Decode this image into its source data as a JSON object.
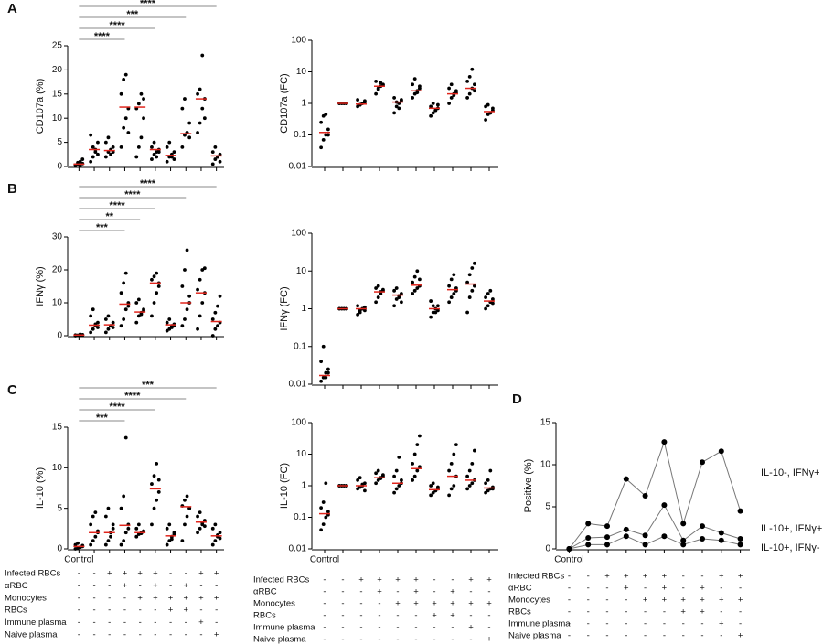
{
  "chart_data": [
    {
      "type": "dot",
      "panel": "A",
      "ylabel": "CD107a (%)",
      "log": false,
      "ylim": [
        0,
        25
      ],
      "yticks": [
        0,
        5,
        10,
        15,
        20,
        25
      ],
      "color": "#000000",
      "median_color": "#e0251c",
      "categories": [
        null,
        null,
        null,
        null,
        null,
        null,
        null,
        null,
        null,
        null
      ],
      "brackets": [
        {
          "from": 0,
          "to": 3,
          "label": "****"
        },
        {
          "from": 0,
          "to": 5,
          "label": "****"
        },
        {
          "from": 0,
          "to": 7,
          "label": "***"
        },
        {
          "from": 0,
          "to": 9,
          "label": "****"
        }
      ],
      "groups": [
        {
          "values": [
            0.2,
            0.5,
            1,
            1.5,
            0.3,
            0.8,
            0.1,
            0.6
          ],
          "median": 0.5
        },
        {
          "values": [
            1,
            2,
            3.5,
            5,
            6.5,
            4,
            3,
            2.5
          ],
          "median": 3.5
        },
        {
          "values": [
            2,
            3,
            3.5,
            4,
            5,
            6,
            2.5,
            3
          ],
          "median": 3.3
        },
        {
          "values": [
            4,
            8,
            10,
            12,
            15,
            18,
            19,
            7
          ],
          "median": 12.3
        },
        {
          "values": [
            2,
            4,
            6,
            10,
            12,
            13,
            15,
            14
          ],
          "median": 12.3
        },
        {
          "values": [
            1.5,
            2.5,
            3,
            3.5,
            4,
            5,
            2,
            3
          ],
          "median": 3.5
        },
        {
          "values": [
            1,
            2,
            2.5,
            3,
            4,
            5,
            2,
            1.5
          ],
          "median": 2.3
        },
        {
          "values": [
            4,
            6.5,
            7,
            9,
            12,
            14,
            7,
            6
          ],
          "median": 6.8
        },
        {
          "values": [
            7,
            9,
            12,
            14,
            15,
            16,
            23,
            10
          ],
          "median": 14
        },
        {
          "values": [
            0.5,
            1.5,
            2,
            2.5,
            3,
            4,
            2,
            1
          ],
          "median": 2.2
        }
      ]
    },
    {
      "type": "dot",
      "ylabel": "CD107a (FC)",
      "log": true,
      "ylim": [
        0.01,
        100
      ],
      "yticks": [
        0.01,
        0.1,
        1,
        10,
        100
      ],
      "color": "#000000",
      "median_color": "#e0251c",
      "categories": [
        null,
        null,
        null,
        null,
        null,
        null,
        null,
        null,
        null,
        null
      ],
      "brackets": [],
      "groups": [
        {
          "values": [
            0.04,
            0.07,
            0.1,
            0.15,
            0.25,
            0.4,
            0.45,
            0.1
          ],
          "median": 0.12
        },
        {
          "values": [
            1,
            1,
            1,
            1,
            1,
            1,
            1,
            1
          ],
          "median": 1
        },
        {
          "values": [
            0.8,
            0.9,
            1,
            1.1,
            1.3,
            0.9,
            1,
            1.2
          ],
          "median": 0.95
        },
        {
          "values": [
            2,
            2.8,
            3.5,
            4,
            5,
            3,
            4.5,
            3.8
          ],
          "median": 3.5
        },
        {
          "values": [
            0.5,
            0.8,
            1,
            1.2,
            1.5,
            1.1,
            0.7,
            1.3
          ],
          "median": 1.1
        },
        {
          "values": [
            1.5,
            2,
            2.5,
            3,
            4,
            6,
            2.2,
            3.5
          ],
          "median": 2.5
        },
        {
          "values": [
            0.4,
            0.5,
            0.6,
            0.7,
            0.8,
            1,
            0.6,
            0.9
          ],
          "median": 0.7
        },
        {
          "values": [
            1,
            1.5,
            2,
            2.5,
            3,
            4,
            1.8,
            2.2
          ],
          "median": 2
        },
        {
          "values": [
            1.5,
            2,
            3,
            4,
            5,
            7,
            12,
            2.5
          ],
          "median": 3
        },
        {
          "values": [
            0.3,
            0.45,
            0.5,
            0.6,
            0.8,
            0.9,
            0.5,
            0.7
          ],
          "median": 0.55
        }
      ]
    },
    {
      "type": "dot",
      "panel": "B",
      "ylabel": "IFNγ (%)",
      "log": false,
      "ylim": [
        0,
        30
      ],
      "yticks": [
        0,
        10,
        20,
        30
      ],
      "color": "#000000",
      "median_color": "#e0251c",
      "categories": [
        null,
        null,
        null,
        null,
        null,
        null,
        null,
        null,
        null,
        null
      ],
      "brackets": [
        {
          "from": 0,
          "to": 3,
          "label": "***"
        },
        {
          "from": 0,
          "to": 4,
          "label": "**"
        },
        {
          "from": 0,
          "to": 5,
          "label": "****"
        },
        {
          "from": 0,
          "to": 7,
          "label": "****"
        },
        {
          "from": 0,
          "to": 9,
          "label": "****"
        }
      ],
      "groups": [
        {
          "values": [
            0,
            0.1,
            0.2,
            0.3,
            0.2,
            0.1,
            0.4,
            0.2
          ],
          "median": 0.2
        },
        {
          "values": [
            1,
            2,
            3,
            4,
            6,
            8,
            3.5,
            2.5
          ],
          "median": 3.2
        },
        {
          "values": [
            1,
            2,
            3,
            4,
            5,
            6,
            3,
            2.5
          ],
          "median": 3.3
        },
        {
          "values": [
            3,
            5,
            8,
            10,
            13,
            16,
            19,
            9
          ],
          "median": 9.6
        },
        {
          "values": [
            4,
            6,
            7,
            8,
            10,
            11,
            6.5,
            7.5
          ],
          "median": 7.2
        },
        {
          "values": [
            6,
            10,
            13,
            15,
            17,
            18,
            19,
            16
          ],
          "median": 16
        },
        {
          "values": [
            1.5,
            2,
            3,
            3.5,
            4,
            5,
            2.5,
            3
          ],
          "median": 3.3
        },
        {
          "values": [
            3,
            5,
            8,
            10,
            15,
            20,
            26,
            12
          ],
          "median": 10
        },
        {
          "values": [
            2,
            6,
            10,
            13,
            14,
            17,
            20,
            20.5
          ],
          "median": 13
        },
        {
          "values": [
            0,
            2,
            3,
            4,
            5,
            7,
            9,
            12
          ],
          "median": 4.3
        }
      ]
    },
    {
      "type": "dot",
      "ylabel": "IFNγ (FC)",
      "log": true,
      "ylim": [
        0.01,
        100
      ],
      "yticks": [
        0.01,
        0.1,
        1,
        10,
        100
      ],
      "color": "#000000",
      "median_color": "#e0251c",
      "categories": [
        null,
        null,
        null,
        null,
        null,
        null,
        null,
        null,
        null,
        null
      ],
      "brackets": [],
      "groups": [
        {
          "values": [
            0.012,
            0.015,
            0.02,
            0.025,
            0.04,
            0.1,
            0.015,
            0.02
          ],
          "median": 0.017
        },
        {
          "values": [
            1,
            1,
            1,
            1,
            1,
            1,
            1,
            1
          ],
          "median": 1
        },
        {
          "values": [
            0.7,
            0.8,
            1,
            1.1,
            1.2,
            0.9,
            1,
            0.9
          ],
          "median": 1
        },
        {
          "values": [
            1.5,
            2,
            2.5,
            3,
            3.5,
            4,
            2.8,
            3.2
          ],
          "median": 2.8
        },
        {
          "values": [
            1.2,
            1.8,
            2,
            2.5,
            3,
            3.5,
            2.2,
            1.5
          ],
          "median": 2.3
        },
        {
          "values": [
            2.5,
            3,
            3.5,
            4,
            5,
            7,
            10,
            6
          ],
          "median": 4.2
        },
        {
          "values": [
            0.6,
            0.8,
            1,
            1.2,
            1.6,
            1.2,
            0.8,
            0.9
          ],
          "median": 1
        },
        {
          "values": [
            1.5,
            2,
            2.5,
            3,
            4,
            6,
            8,
            3.5
          ],
          "median": 3.2
        },
        {
          "values": [
            0.8,
            2,
            3,
            4,
            5,
            8,
            12,
            16
          ],
          "median": 4.5
        },
        {
          "values": [
            1,
            1.2,
            1.5,
            1.8,
            2,
            2.5,
            3,
            1.4
          ],
          "median": 1.6
        }
      ]
    },
    {
      "type": "dot",
      "panel": "C",
      "ylabel": "IL-10 (%)",
      "log": false,
      "ylim": [
        0,
        15
      ],
      "yticks": [
        0,
        5,
        10,
        15
      ],
      "color": "#000000",
      "median_color": "#e0251c",
      "categories": [
        "Control",
        null,
        null,
        null,
        null,
        null,
        null,
        null,
        null,
        null
      ],
      "brackets": [
        {
          "from": 0,
          "to": 3,
          "label": "***"
        },
        {
          "from": 0,
          "to": 5,
          "label": "****"
        },
        {
          "from": 0,
          "to": 7,
          "label": "****"
        },
        {
          "from": 0,
          "to": 9,
          "label": "***"
        }
      ],
      "groups": [
        {
          "values": [
            0,
            0.1,
            0.2,
            0.3,
            0.5,
            0.7,
            0.2,
            0.4
          ],
          "median": 0.3
        },
        {
          "values": [
            0.5,
            1,
            1.5,
            2,
            3,
            4,
            4.5,
            2.2
          ],
          "median": 2
        },
        {
          "values": [
            0.5,
            1,
            2,
            3,
            4,
            5,
            1.5,
            2.5
          ],
          "median": 2
        },
        {
          "values": [
            0.5,
            1,
            2,
            3,
            5,
            6.5,
            13.7,
            2.5
          ],
          "median": 2.9
        },
        {
          "values": [
            1.5,
            1.8,
            2,
            2.2,
            2.5,
            3,
            1.9,
            2.1
          ],
          "median": 2
        },
        {
          "values": [
            3,
            5,
            6,
            7,
            8,
            9,
            10.5,
            8.5
          ],
          "median": 7.4
        },
        {
          "values": [
            0.5,
            1,
            1.5,
            2,
            2.5,
            3,
            1.2,
            1.8
          ],
          "median": 1.6
        },
        {
          "values": [
            1,
            3,
            4,
            5,
            5.3,
            6,
            6.5,
            5
          ],
          "median": 5.2
        },
        {
          "values": [
            2,
            2.5,
            3,
            3.5,
            4,
            4.5,
            3.2,
            2.8
          ],
          "median": 3.3
        },
        {
          "values": [
            0.5,
            1,
            1.5,
            2,
            2.5,
            3,
            1.7,
            1.3
          ],
          "median": 1.6
        }
      ]
    },
    {
      "type": "dot",
      "ylabel": "IL-10 (FC)",
      "log": true,
      "ylim": [
        0.01,
        100
      ],
      "yticks": [
        0.01,
        0.1,
        1,
        10,
        100
      ],
      "color": "#000000",
      "median_color": "#e0251c",
      "categories": [
        "Control",
        null,
        null,
        null,
        null,
        null,
        null,
        null,
        null,
        null
      ],
      "brackets": [],
      "groups": [
        {
          "values": [
            0.04,
            0.06,
            0.1,
            0.15,
            0.2,
            0.3,
            1.2,
            0.12
          ],
          "median": 0.13
        },
        {
          "values": [
            1,
            1,
            1,
            1,
            1,
            1,
            1,
            1
          ],
          "median": 1
        },
        {
          "values": [
            0.8,
            0.9,
            1,
            1.2,
            1.5,
            1.8,
            1.1,
            0.7
          ],
          "median": 1
        },
        {
          "values": [
            1.2,
            1.5,
            1.8,
            2,
            2.5,
            3,
            1.7,
            2.2
          ],
          "median": 1.8
        },
        {
          "values": [
            0.6,
            0.8,
            1,
            1.5,
            2,
            3,
            8,
            1.2
          ],
          "median": 1.2
        },
        {
          "values": [
            1.5,
            2,
            3,
            4,
            5,
            10,
            20,
            38
          ],
          "median": 3.5
        },
        {
          "values": [
            0.5,
            0.6,
            0.7,
            0.8,
            1,
            1.2,
            0.7,
            0.9
          ],
          "median": 0.75
        },
        {
          "values": [
            0.5,
            0.8,
            1,
            2,
            3,
            5,
            10,
            20
          ],
          "median": 2
        },
        {
          "values": [
            0.8,
            1,
            1.2,
            1.5,
            2,
            3,
            5,
            13
          ],
          "median": 1.5
        },
        {
          "values": [
            0.6,
            0.7,
            0.8,
            0.9,
            1.2,
            1.5,
            3,
            0.8
          ],
          "median": 0.85
        }
      ]
    },
    {
      "type": "line",
      "panel": "D",
      "ylabel": "Positive (%)",
      "log": false,
      "ylim": [
        0,
        15
      ],
      "yticks": [
        0,
        5,
        10,
        15
      ],
      "line_color": "#777777",
      "color": "#000000",
      "categories": [
        "Control",
        null,
        null,
        null,
        null,
        null,
        null,
        null,
        null,
        null
      ],
      "brackets": [],
      "series": [
        {
          "name": "IL-10-, IFNγ+",
          "values": [
            0,
            3,
            2.7,
            8.3,
            6.3,
            12.7,
            3,
            10.3,
            11.6,
            4.5
          ]
        },
        {
          "name": "IL-10+, IFNγ+",
          "values": [
            0,
            1.3,
            1.4,
            2.3,
            1.6,
            5.2,
            1,
            2.7,
            1.9,
            1.2
          ]
        },
        {
          "name": "IL-10+, IFNγ-",
          "values": [
            0,
            0.5,
            0.5,
            1.5,
            0.5,
            1.5,
            0.5,
            1.2,
            1,
            0.5
          ]
        }
      ]
    }
  ],
  "conditions": {
    "rows": [
      {
        "label": "Infected  RBCs",
        "marks": [
          "-",
          "-",
          "+",
          "+",
          "+",
          "+",
          "-",
          "-",
          "+",
          "+"
        ]
      },
      {
        "label": "αRBC",
        "marks": [
          "-",
          "-",
          "-",
          "+",
          "-",
          "+",
          "-",
          "+",
          "-",
          "-"
        ]
      },
      {
        "label": "Monocytes",
        "marks": [
          "-",
          "-",
          "-",
          "-",
          "+",
          "+",
          "+",
          "+",
          "+",
          "+"
        ]
      },
      {
        "label": "RBCs",
        "marks": [
          "-",
          "-",
          "-",
          "-",
          "-",
          "-",
          "+",
          "+",
          "-",
          "-"
        ]
      },
      {
        "label": "Immune plasma",
        "marks": [
          "-",
          "-",
          "-",
          "-",
          "-",
          "-",
          "-",
          "-",
          "+",
          "-"
        ]
      },
      {
        "label": "Naive plasma",
        "marks": [
          "-",
          "-",
          "-",
          "-",
          "-",
          "-",
          "-",
          "-",
          "-",
          "+"
        ]
      }
    ]
  }
}
